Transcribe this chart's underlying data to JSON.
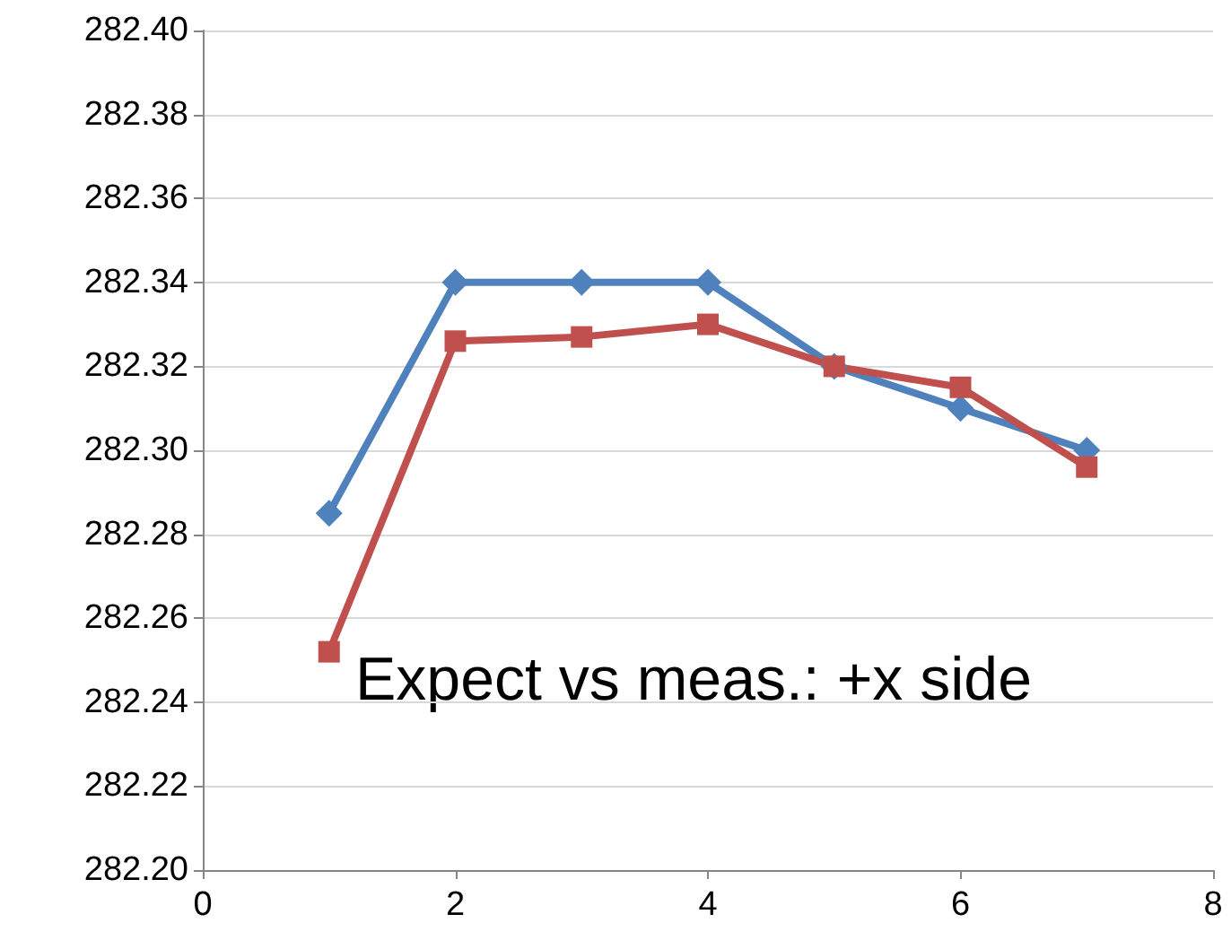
{
  "chart_data": {
    "type": "line",
    "x": [
      1,
      2,
      3,
      4,
      5,
      6,
      7
    ],
    "series": [
      {
        "color": "#4f81bd",
        "marker": "diamond",
        "values": [
          282.285,
          282.34,
          282.34,
          282.34,
          282.32,
          282.31,
          282.3
        ]
      },
      {
        "color": "#c0504d",
        "marker": "square",
        "values": [
          282.252,
          282.326,
          282.327,
          282.33,
          282.32,
          282.315,
          282.296
        ]
      }
    ],
    "xlim": [
      0,
      8
    ],
    "xticks": [
      0,
      2,
      4,
      6,
      8
    ],
    "ylim": [
      282.2,
      282.4
    ],
    "yticks": [
      {
        "value": 282.2,
        "label": "282.20"
      },
      {
        "value": 282.22,
        "label": "282.22"
      },
      {
        "value": 282.24,
        "label": "282.24"
      },
      {
        "value": 282.26,
        "label": "282.26"
      },
      {
        "value": 282.28,
        "label": "282.28"
      },
      {
        "value": 282.3,
        "label": "282.30"
      },
      {
        "value": 282.32,
        "label": "282.32"
      },
      {
        "value": 282.34,
        "label": "282.34"
      },
      {
        "value": 282.36,
        "label": "282.36"
      },
      {
        "value": 282.38,
        "label": "282.38"
      },
      {
        "value": 282.4,
        "label": "282.40"
      }
    ],
    "annotations": [
      "Expect vs meas.: +x side"
    ],
    "grid": "y"
  }
}
